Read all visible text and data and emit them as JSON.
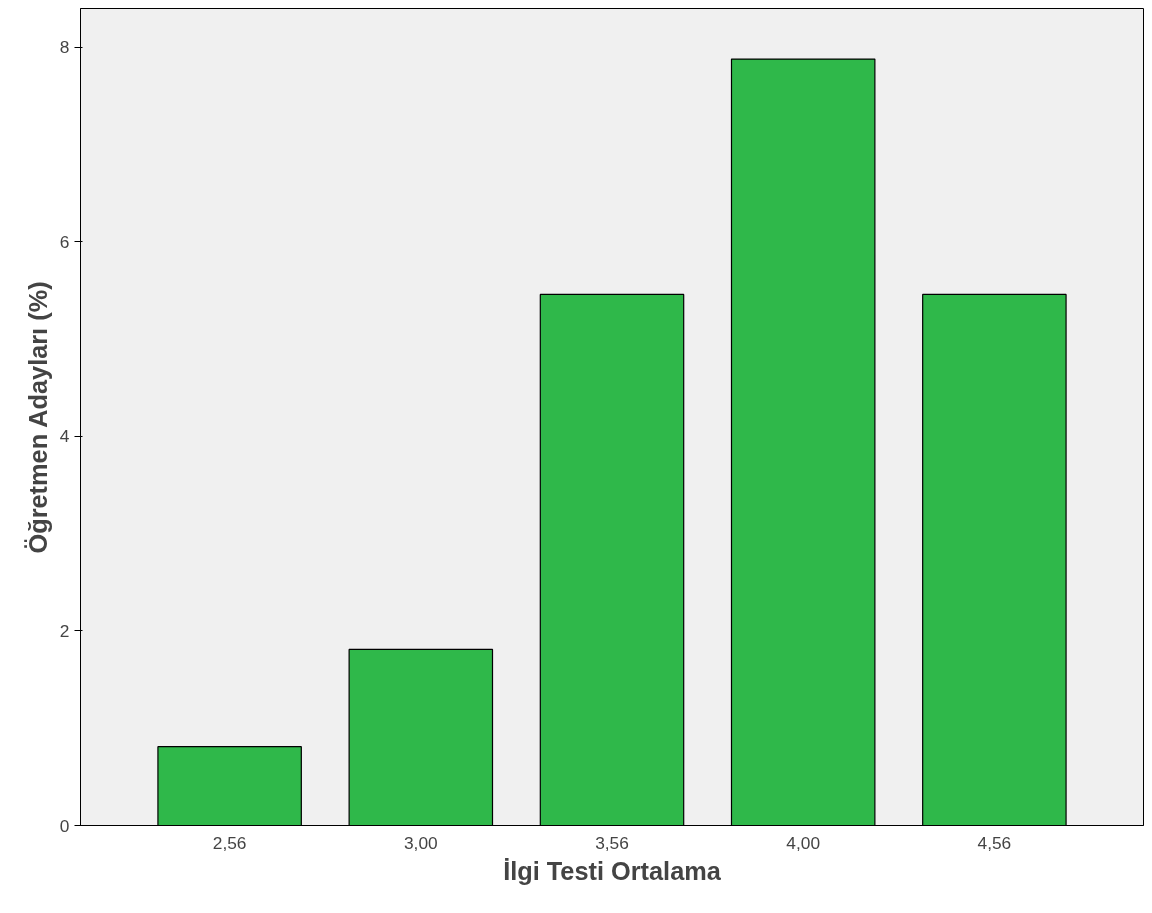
{
  "chart_data": {
    "type": "bar",
    "xlabel": "İlgi Testi Ortalama",
    "ylabel": "Öğretmen Adayları (%)",
    "categories": [
      "2,56",
      "3,00",
      "3,56",
      "4,00",
      "4,56"
    ],
    "values": [
      0.81,
      1.81,
      5.46,
      7.88,
      5.46
    ],
    "color": "#2fb84a",
    "ylim": [
      0,
      8.4
    ],
    "yticks": [
      0,
      2,
      4,
      6,
      8
    ],
    "grid": false
  }
}
